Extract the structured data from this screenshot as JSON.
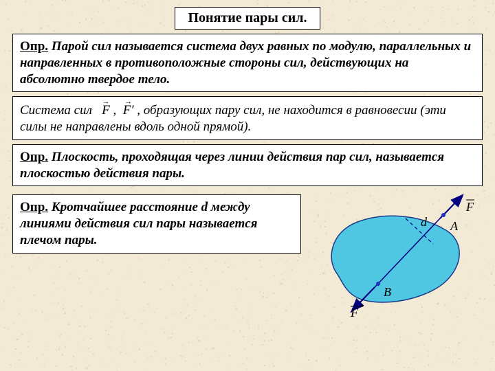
{
  "background_color": "#f3ead6",
  "noise_color": "#e2d3b0",
  "title": "Понятие пары сил.",
  "box1": {
    "defn": "Опр.",
    "text": "Парой сил называется система двух равных по модулю, параллельных и направленных в противоположные стороны сил, действующих на абсолютно твердое тело."
  },
  "box2": {
    "lead": "Система сил",
    "vec1": "F",
    "vec2_base": "F",
    "vec2_prime": "′",
    "tail": ", образующих пару сил, не находится в равновесии (эти силы не направлены вдоль одной прямой)."
  },
  "box3": {
    "defn": "Опр.",
    "text": "Плоскость, проходящая через линии действия пар сил, называется плоскостью действия пары."
  },
  "box4": {
    "defn": "Опр.",
    "text": "Кротчайшее расстояние d между линиями действия сил пары называется плечом пары."
  },
  "diagram": {
    "blob_fill": "#4fc7e3",
    "blob_stroke": "#1a3a8a",
    "line_color": "#000080",
    "dash_color": "#000080",
    "dot_color": "#2030c0",
    "label_d": "d",
    "label_A": "A",
    "label_B": "B",
    "label_F": "F",
    "label_Fprime_base": "F",
    "label_Fprime_prime": "′",
    "text_color": "#000000",
    "font_size": 18
  }
}
